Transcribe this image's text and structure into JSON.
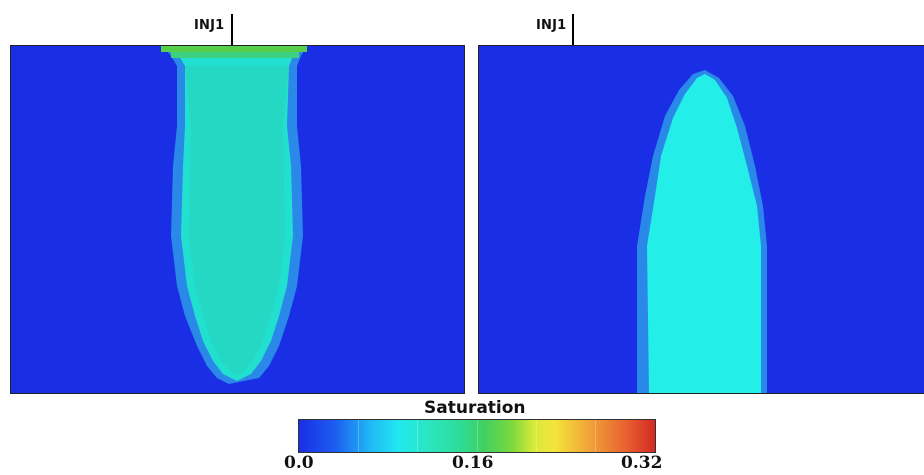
{
  "wells": [
    {
      "label": "INJ1"
    },
    {
      "label": "INJ1"
    }
  ],
  "colorbar": {
    "title": "Saturation",
    "ticks": [
      "0.0",
      "0.16",
      "0.32"
    ],
    "min": 0.0,
    "max": 0.32
  },
  "colors": {
    "background": "#1a2ee6",
    "plume": "#22e0d0",
    "plume_right": "#24eee8",
    "plume_edge": "#2ad8b0",
    "injection_zone": "#4cd04a"
  }
}
